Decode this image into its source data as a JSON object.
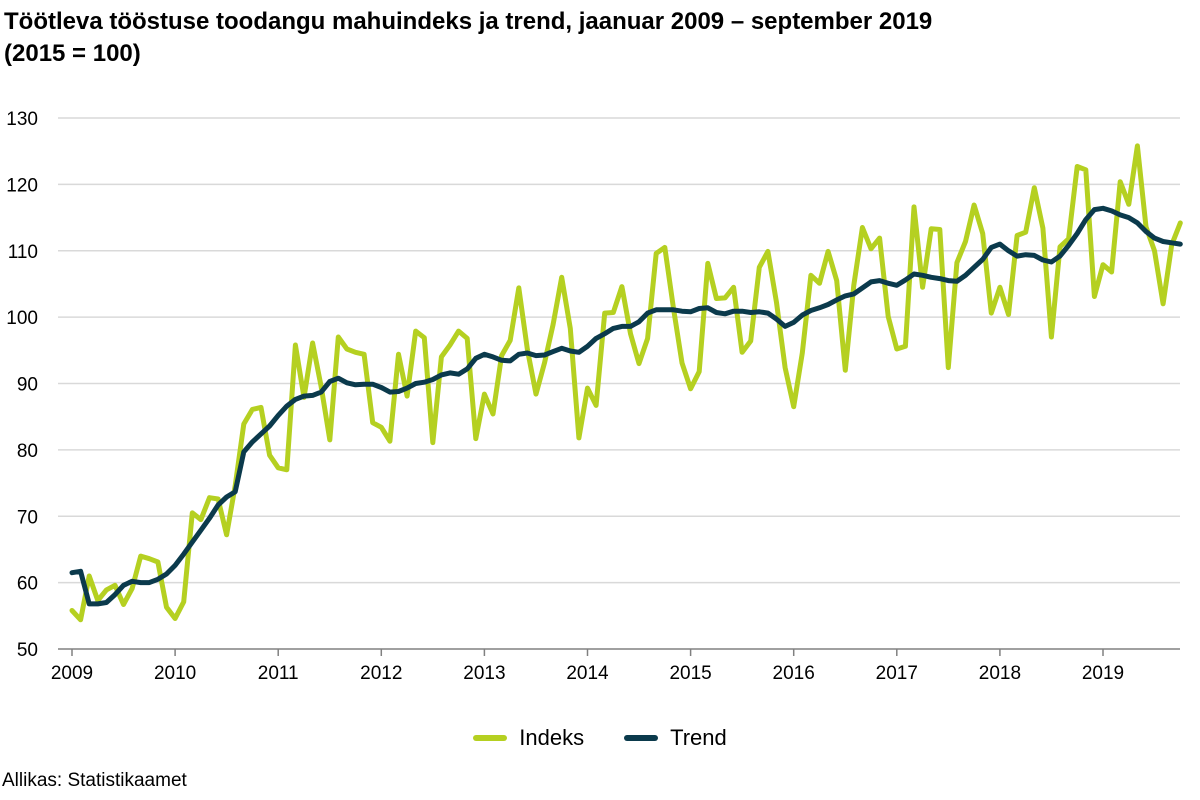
{
  "title_line1": "Töötleva tööstuse toodangu mahuindeks ja trend, jaanuar 2009 – september 2019",
  "title_line2": "(2015 = 100)",
  "source": "Allikas: Statistikaamet",
  "colors": {
    "indeks": "#b5d021",
    "trend": "#0b3a4c",
    "grid": "#d9d9d9",
    "axis": "#808080"
  },
  "chart_data": {
    "type": "line",
    "title": "Töötleva tööstuse toodangu mahuindeks ja trend, jaanuar 2009 – september 2019 (2015 = 100)",
    "xlabel": "",
    "ylabel": "",
    "ylim": [
      50,
      130
    ],
    "yticks": [
      "50",
      "60",
      "70",
      "80",
      "90",
      "100",
      "110",
      "120",
      "130"
    ],
    "xticks": [
      "2009",
      "2010",
      "2011",
      "2012",
      "2013",
      "2014",
      "2015",
      "2016",
      "2017",
      "2018",
      "2019"
    ],
    "x_start": "2009-01",
    "x_end": "2019-09",
    "legend_position": "bottom-center",
    "grid": true,
    "series": [
      {
        "name": "Indeks",
        "values": [
          55.8,
          54.4,
          61.0,
          57.3,
          58.9,
          59.6,
          56.7,
          59.1,
          64.0,
          63.6,
          63.1,
          56.3,
          54.6,
          57.1,
          70.5,
          69.5,
          72.8,
          72.6,
          67.2,
          74.6,
          83.9,
          86.1,
          86.4,
          79.2,
          77.3,
          77.0,
          95.8,
          87.9,
          96.1,
          89.5,
          81.5,
          97.0,
          95.2,
          94.7,
          94.4,
          84.1,
          83.4,
          81.3,
          94.4,
          88.1,
          97.9,
          96.9,
          81.1,
          94.0,
          95.8,
          97.9,
          96.8,
          81.7,
          88.4,
          85.4,
          94.2,
          96.5,
          104.4,
          95.1,
          88.4,
          93.1,
          98.9,
          106.0,
          98.3,
          81.8,
          89.3,
          86.7,
          100.6,
          100.7,
          104.6,
          97.5,
          93.0,
          96.8,
          109.6,
          110.5,
          101.4,
          93.1,
          89.2,
          91.8,
          108.1,
          102.8,
          102.9,
          104.5,
          94.7,
          96.4,
          107.5,
          109.9,
          102.2,
          92.4,
          86.5,
          94.6,
          106.3,
          105.1,
          109.9,
          105.5,
          92.0,
          104.8,
          113.5,
          110.3,
          111.9,
          100.1,
          95.2,
          95.6,
          116.6,
          104.5,
          113.3,
          113.2,
          92.4,
          108.2,
          111.4,
          116.9,
          112.6,
          100.6,
          104.5,
          100.4,
          112.3,
          112.8,
          119.5,
          113.4,
          97.0,
          110.6,
          111.8,
          122.7,
          122.2,
          103.1,
          107.9,
          106.8,
          120.4,
          117.0,
          125.8,
          113.6,
          110.0,
          102.0,
          110.9,
          114.2
        ]
      },
      {
        "name": "Trend",
        "values": [
          61.5,
          61.7,
          56.8,
          56.8,
          57.0,
          58.2,
          59.6,
          60.2,
          60.0,
          60.0,
          60.5,
          61.3,
          62.6,
          64.3,
          66.1,
          67.9,
          69.7,
          71.7,
          72.9,
          73.7,
          79.7,
          81.2,
          82.4,
          83.6,
          85.2,
          86.6,
          87.6,
          88.1,
          88.2,
          88.7,
          90.3,
          90.8,
          90.1,
          89.8,
          89.9,
          89.9,
          89.4,
          88.7,
          88.8,
          89.3,
          90.0,
          90.2,
          90.6,
          91.3,
          91.6,
          91.4,
          92.2,
          93.8,
          94.4,
          94.0,
          93.5,
          93.4,
          94.4,
          94.6,
          94.2,
          94.3,
          94.8,
          95.3,
          94.9,
          94.7,
          95.6,
          96.8,
          97.5,
          98.3,
          98.6,
          98.6,
          99.3,
          100.6,
          101.1,
          101.1,
          101.1,
          100.9,
          100.8,
          101.3,
          101.4,
          100.7,
          100.5,
          100.9,
          100.9,
          100.7,
          100.8,
          100.6,
          99.7,
          98.6,
          99.2,
          100.3,
          101.0,
          101.4,
          101.9,
          102.6,
          103.2,
          103.5,
          104.4,
          105.3,
          105.5,
          105.1,
          104.8,
          105.6,
          106.5,
          106.3,
          106.0,
          105.8,
          105.5,
          105.4,
          106.3,
          107.5,
          108.7,
          110.5,
          111.0,
          110.0,
          109.2,
          109.4,
          109.3,
          108.6,
          108.3,
          109.2,
          110.8,
          112.6,
          114.7,
          116.2,
          116.4,
          116.0,
          115.4,
          115.0,
          114.2,
          112.9,
          111.9,
          111.4,
          111.2,
          111.0
        ]
      }
    ]
  }
}
